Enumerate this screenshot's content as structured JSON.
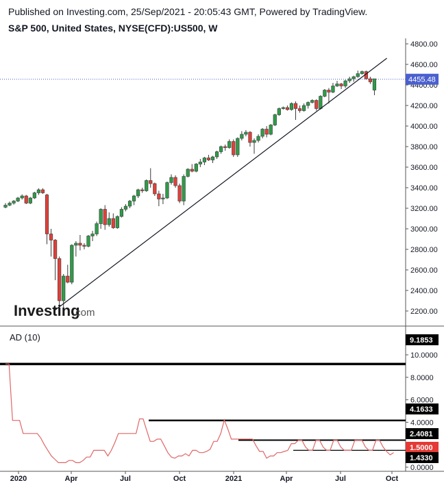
{
  "header": {
    "published": "Published on Investing.com, 25/Sep/2021 - 20:05:43 GMT, Powered by TradingView.",
    "title": "S&P 500, United States, NYSE(CFD):US500, W"
  },
  "logo": {
    "brand": "Investing",
    "domain": ".com"
  },
  "colors": {
    "up": "#2e9c48",
    "down": "#e0403a",
    "last_price_bg": "#4a5fcf",
    "indicator_line": "#e06666",
    "indicator_badge_red": "#e53935"
  },
  "chart_data": [
    {
      "type": "candlestick",
      "title": "S&P 500, United States, NYSE(CFD):US500, W",
      "x_ticks": [
        "2020",
        "Apr",
        "Jul",
        "Oct",
        "2021",
        "Apr",
        "Jul",
        "Oct"
      ],
      "y_ticks": [
        "2200.00",
        "2400.00",
        "2600.00",
        "2800.00",
        "3000.00",
        "3200.00",
        "3400.00",
        "3600.00",
        "3800.00",
        "4000.00",
        "4200.00",
        "4400.00",
        "4600.00",
        "4800.00"
      ],
      "ylim": [
        2080,
        4870
      ],
      "last_price": 4455.48,
      "last_price_label": "4455.48",
      "trendline": {
        "from": {
          "week": 12,
          "value": 2210
        },
        "to": {
          "week": 92,
          "value": 4660
        }
      },
      "candles": [
        [
          3210,
          3250,
          3200,
          3230
        ],
        [
          3230,
          3265,
          3220,
          3250
        ],
        [
          3250,
          3280,
          3235,
          3270
        ],
        [
          3270,
          3310,
          3260,
          3300
        ],
        [
          3300,
          3335,
          3285,
          3320
        ],
        [
          3320,
          3330,
          3240,
          3250
        ],
        [
          3250,
          3310,
          3240,
          3300
        ],
        [
          3300,
          3360,
          3290,
          3350
        ],
        [
          3350,
          3395,
          3330,
          3380
        ],
        [
          3380,
          3395,
          3340,
          3350
        ],
        [
          3330,
          3340,
          2850,
          2950
        ],
        [
          2950,
          3000,
          2730,
          2890
        ],
        [
          2890,
          2900,
          2500,
          2710
        ],
        [
          2710,
          2730,
          2190,
          2300
        ],
        [
          2300,
          2560,
          2190,
          2540
        ],
        [
          2540,
          2650,
          2470,
          2480
        ],
        [
          2480,
          2850,
          2460,
          2840
        ],
        [
          2840,
          2880,
          2730,
          2860
        ],
        [
          2860,
          2940,
          2790,
          2840
        ],
        [
          2840,
          2860,
          2800,
          2830
        ],
        [
          2830,
          2940,
          2820,
          2930
        ],
        [
          2930,
          2980,
          2880,
          2950
        ],
        [
          2950,
          3070,
          2930,
          3050
        ],
        [
          3050,
          3200,
          3000,
          3190
        ],
        [
          3190,
          3230,
          2990,
          3040
        ],
        [
          3040,
          3160,
          3020,
          3100
        ],
        [
          3100,
          3150,
          3000,
          3010
        ],
        [
          3010,
          3130,
          3000,
          3120
        ],
        [
          3120,
          3210,
          3110,
          3190
        ],
        [
          3190,
          3240,
          3170,
          3220
        ],
        [
          3220,
          3280,
          3200,
          3270
        ],
        [
          3270,
          3330,
          3230,
          3320
        ],
        [
          3320,
          3390,
          3300,
          3380
        ],
        [
          3380,
          3400,
          3350,
          3370
        ],
        [
          3370,
          3480,
          3360,
          3470
        ],
        [
          3470,
          3590,
          3400,
          3440
        ],
        [
          3440,
          3450,
          3320,
          3340
        ],
        [
          3340,
          3370,
          3220,
          3290
        ],
        [
          3290,
          3340,
          3240,
          3300
        ],
        [
          3300,
          3460,
          3290,
          3450
        ],
        [
          3450,
          3530,
          3430,
          3500
        ],
        [
          3500,
          3520,
          3400,
          3420
        ],
        [
          3420,
          3440,
          3250,
          3270
        ],
        [
          3270,
          3530,
          3230,
          3510
        ],
        [
          3510,
          3590,
          3500,
          3580
        ],
        [
          3580,
          3630,
          3550,
          3560
        ],
        [
          3560,
          3640,
          3550,
          3630
        ],
        [
          3630,
          3680,
          3600,
          3650
        ],
        [
          3650,
          3700,
          3620,
          3690
        ],
        [
          3690,
          3720,
          3660,
          3670
        ],
        [
          3670,
          3710,
          3640,
          3700
        ],
        [
          3700,
          3760,
          3680,
          3750
        ],
        [
          3750,
          3810,
          3730,
          3800
        ],
        [
          3800,
          3820,
          3760,
          3790
        ],
        [
          3790,
          3870,
          3780,
          3850
        ],
        [
          3850,
          3870,
          3700,
          3720
        ],
        [
          3720,
          3890,
          3700,
          3880
        ],
        [
          3880,
          3950,
          3860,
          3920
        ],
        [
          3920,
          3960,
          3900,
          3940
        ],
        [
          3940,
          3950,
          3800,
          3840
        ],
        [
          3840,
          3880,
          3730,
          3860
        ],
        [
          3860,
          3920,
          3840,
          3900
        ],
        [
          3900,
          3980,
          3880,
          3970
        ],
        [
          3970,
          4000,
          3890,
          3920
        ],
        [
          3920,
          4020,
          3910,
          4010
        ],
        [
          4010,
          4120,
          4000,
          4110
        ],
        [
          4110,
          4180,
          4100,
          4170
        ],
        [
          4170,
          4190,
          4160,
          4180
        ],
        [
          4180,
          4200,
          4150,
          4160
        ],
        [
          4160,
          4230,
          4150,
          4220
        ],
        [
          4220,
          4240,
          4060,
          4170
        ],
        [
          4170,
          4200,
          4130,
          4150
        ],
        [
          4150,
          4220,
          4140,
          4200
        ],
        [
          4200,
          4240,
          4170,
          4230
        ],
        [
          4230,
          4260,
          4220,
          4250
        ],
        [
          4250,
          4260,
          4150,
          4170
        ],
        [
          4170,
          4300,
          4160,
          4290
        ],
        [
          4290,
          4360,
          4280,
          4350
        ],
        [
          4350,
          4370,
          4220,
          4330
        ],
        [
          4330,
          4420,
          4320,
          4390
        ],
        [
          4390,
          4440,
          4380,
          4410
        ],
        [
          4410,
          4420,
          4360,
          4390
        ],
        [
          4390,
          4450,
          4370,
          4440
        ],
        [
          4440,
          4480,
          4420,
          4460
        ],
        [
          4460,
          4490,
          4430,
          4480
        ],
        [
          4480,
          4540,
          4470,
          4510
        ],
        [
          4510,
          4540,
          4500,
          4530
        ],
        [
          4530,
          4540,
          4450,
          4460
        ],
        [
          4460,
          4480,
          4410,
          4430
        ],
        [
          4350,
          4460,
          4300,
          4460
        ]
      ]
    },
    {
      "type": "line",
      "title": "AD (10)",
      "y_ticks": [
        "0.0000",
        "2.0000",
        "4.0000",
        "6.0000",
        "8.0000",
        "10.0000"
      ],
      "ylim": [
        -0.1,
        10.4
      ],
      "values": [
        9.1853,
        9.1853,
        4.1633,
        4.1633,
        4.1633,
        3.0,
        3.0,
        3.0,
        3.0,
        3.0,
        2.6,
        2.0,
        1.5,
        1.0,
        0.7,
        0.4,
        0.4,
        0.4,
        0.6,
        0.6,
        0.4,
        0.4,
        0.6,
        0.9,
        0.9,
        1.5,
        1.5,
        1.5,
        1.5,
        1.0,
        1.5,
        2.2,
        3.0,
        3.0,
        3.0,
        3.0,
        3.0,
        3.0,
        4.3,
        4.3,
        3.3,
        2.3,
        2.3,
        2.5,
        2.5,
        1.9,
        1.3,
        0.9,
        0.8,
        1.0,
        1.0,
        1.2,
        1.0,
        1.5,
        1.5,
        1.3,
        1.3,
        1.4,
        1.6,
        2.3,
        2.3,
        3.0,
        4.2,
        3.4,
        2.5,
        2.5,
        2.5,
        2.5,
        2.5,
        2.5,
        2.5,
        1.9,
        1.4,
        1.4,
        0.8,
        1.0,
        1.0,
        1.3,
        1.3,
        1.4,
        1.5,
        2.1,
        2.1,
        2.4,
        2.4,
        1.8,
        1.5,
        1.5,
        2.4,
        2.4,
        1.8,
        1.5,
        1.5,
        2.4,
        2.4,
        1.8,
        1.5,
        1.5,
        1.5,
        2.4,
        2.4,
        2.4,
        1.8,
        1.5,
        1.5,
        2.4,
        2.4,
        1.8,
        1.4,
        1.1,
        1.3
      ],
      "horizontal_levels": [
        {
          "value": 9.1853,
          "label": "9.1853",
          "style": "black"
        },
        {
          "value": 4.1633,
          "label": "4.1633",
          "style": "black"
        },
        {
          "value": 2.4081,
          "label": "2.4081",
          "style": "black"
        },
        {
          "value": 1.5,
          "label": "1.5000",
          "style": "red"
        },
        {
          "value": 1.433,
          "label": "1.4330",
          "style": "black"
        }
      ]
    }
  ]
}
